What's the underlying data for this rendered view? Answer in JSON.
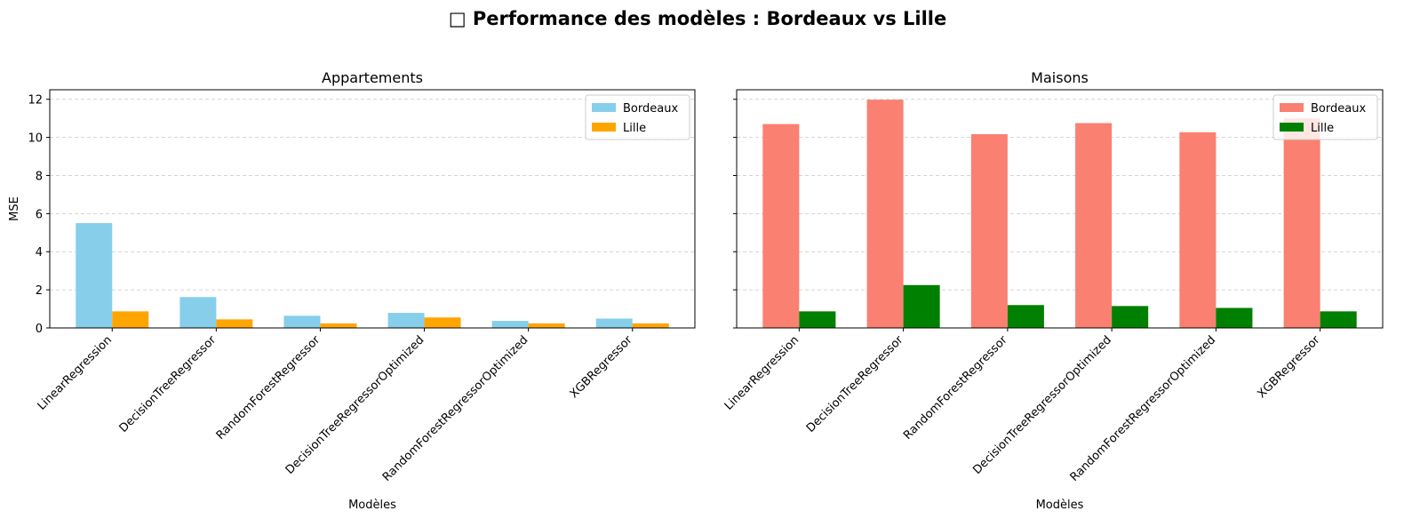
{
  "suptitle": "□ Performance des modèles : Bordeaux vs Lille",
  "chart_data": [
    {
      "type": "bar",
      "title": "Appartements",
      "xlabel": "Modèles",
      "ylabel": "MSE",
      "ylim": [
        0,
        12.5
      ],
      "yticks": [
        0,
        2,
        4,
        6,
        8,
        10,
        12
      ],
      "grid": "y-dashed",
      "legend_position": "top-right",
      "categories": [
        "LinearRegression",
        "DecisionTreeRegressor",
        "RandomForestRegressor",
        "DecisionTreeRegressorOptimized",
        "RandomForestRegressorOptimized",
        "XGBRegressor"
      ],
      "series": [
        {
          "name": "Bordeaux",
          "color": "#87ceeb",
          "values": [
            5.5,
            1.62,
            0.64,
            0.79,
            0.37,
            0.49
          ]
        },
        {
          "name": "Lille",
          "color": "#ffa500",
          "values": [
            0.87,
            0.45,
            0.24,
            0.55,
            0.24,
            0.24
          ]
        }
      ]
    },
    {
      "type": "bar",
      "title": "Maisons",
      "xlabel": "Modèles",
      "ylabel": "",
      "ylim": [
        0,
        12.5
      ],
      "yticks": [
        0,
        2,
        4,
        6,
        8,
        10,
        12
      ],
      "show_ytick_labels": false,
      "grid": "y-dashed",
      "legend_position": "top-right",
      "categories": [
        "LinearRegression",
        "DecisionTreeRegressor",
        "RandomForestRegressor",
        "DecisionTreeRegressorOptimized",
        "RandomForestRegressorOptimized",
        "XGBRegressor"
      ],
      "series": [
        {
          "name": "Bordeaux",
          "color": "#fa8072",
          "values": [
            10.7,
            11.98,
            10.17,
            10.75,
            10.27,
            11.0
          ]
        },
        {
          "name": "Lille",
          "color": "#008000",
          "values": [
            0.87,
            2.25,
            1.2,
            1.15,
            1.05,
            0.87
          ]
        }
      ]
    }
  ]
}
